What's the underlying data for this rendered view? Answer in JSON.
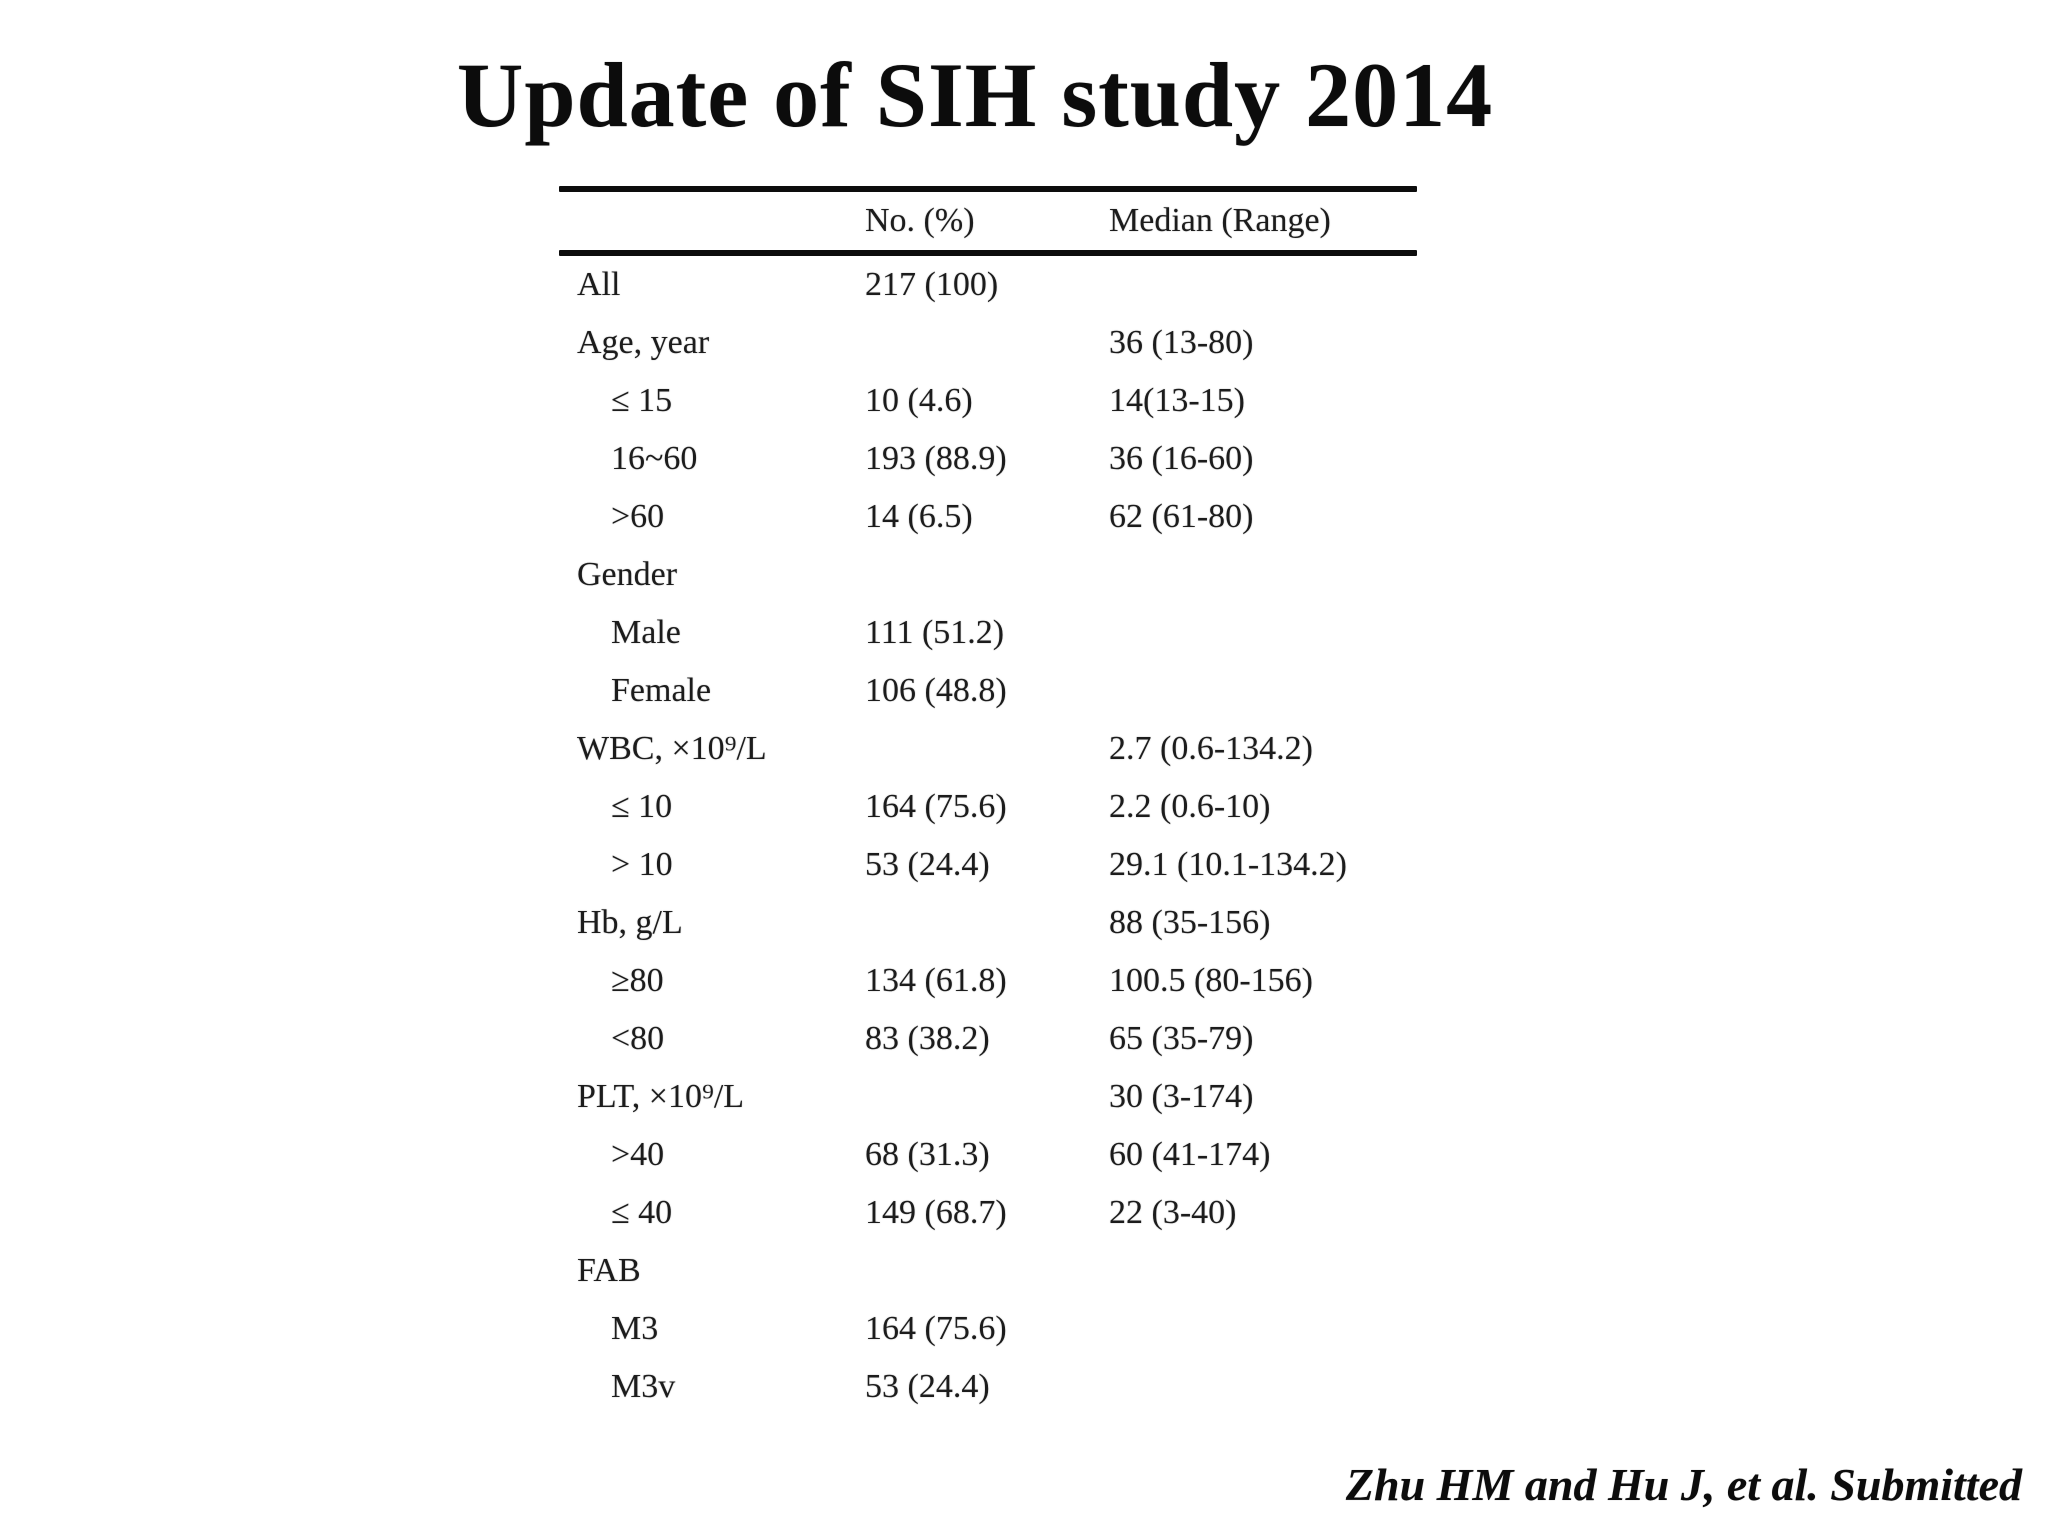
{
  "title": "Update of SIH study 2014",
  "footer": "Zhu HM and Hu J, et al. Submitted",
  "colors": {
    "background": "#ffffff",
    "text": "#1a1a1a",
    "rule": "#0d0d0d"
  },
  "chart_data": {
    "type": "table",
    "columns": [
      "",
      "No. (%)",
      "Median (Range)"
    ],
    "rows": [
      {
        "label": "All",
        "indent": 0,
        "no": "217 (100)",
        "median": ""
      },
      {
        "label": "Age, year",
        "indent": 0,
        "no": "",
        "median": "36 (13-80)"
      },
      {
        "label": "≤ 15",
        "indent": 1,
        "no": "10 (4.6)",
        "median": "14(13-15)"
      },
      {
        "label": "16~60",
        "indent": 1,
        "no": "193 (88.9)",
        "median": "36 (16-60)"
      },
      {
        "label": ">60",
        "indent": 1,
        "no": "14 (6.5)",
        "median": "62 (61-80)"
      },
      {
        "label": "Gender",
        "indent": 0,
        "no": "",
        "median": ""
      },
      {
        "label": "Male",
        "indent": 1,
        "no": "111 (51.2)",
        "median": ""
      },
      {
        "label": "Female",
        "indent": 1,
        "no": "106 (48.8)",
        "median": ""
      },
      {
        "label": "WBC, ×10⁹/L",
        "indent": 0,
        "no": "",
        "median": "2.7 (0.6-134.2)"
      },
      {
        "label": "≤ 10",
        "indent": 1,
        "no": "164 (75.6)",
        "median": "2.2 (0.6-10)"
      },
      {
        "label": "> 10",
        "indent": 1,
        "no": "53 (24.4)",
        "median": "29.1 (10.1-134.2)"
      },
      {
        "label": "Hb, g/L",
        "indent": 0,
        "no": "",
        "median": "88 (35-156)"
      },
      {
        "label": "≥80",
        "indent": 1,
        "no": "134 (61.8)",
        "median": "100.5 (80-156)"
      },
      {
        "label": "<80",
        "indent": 1,
        "no": "83 (38.2)",
        "median": "65 (35-79)"
      },
      {
        "label": "PLT, ×10⁹/L",
        "indent": 0,
        "no": "",
        "median": "30 (3-174)"
      },
      {
        "label": ">40",
        "indent": 1,
        "no": "68 (31.3)",
        "median": "60 (41-174)"
      },
      {
        "label": "≤ 40",
        "indent": 1,
        "no": "149 (68.7)",
        "median": "22 (3-40)"
      },
      {
        "label": "FAB",
        "indent": 0,
        "no": "",
        "median": ""
      },
      {
        "label": "M3",
        "indent": 1,
        "no": "164 (75.6)",
        "median": ""
      },
      {
        "label": "M3v",
        "indent": 1,
        "no": "53 (24.4)",
        "median": ""
      }
    ]
  }
}
